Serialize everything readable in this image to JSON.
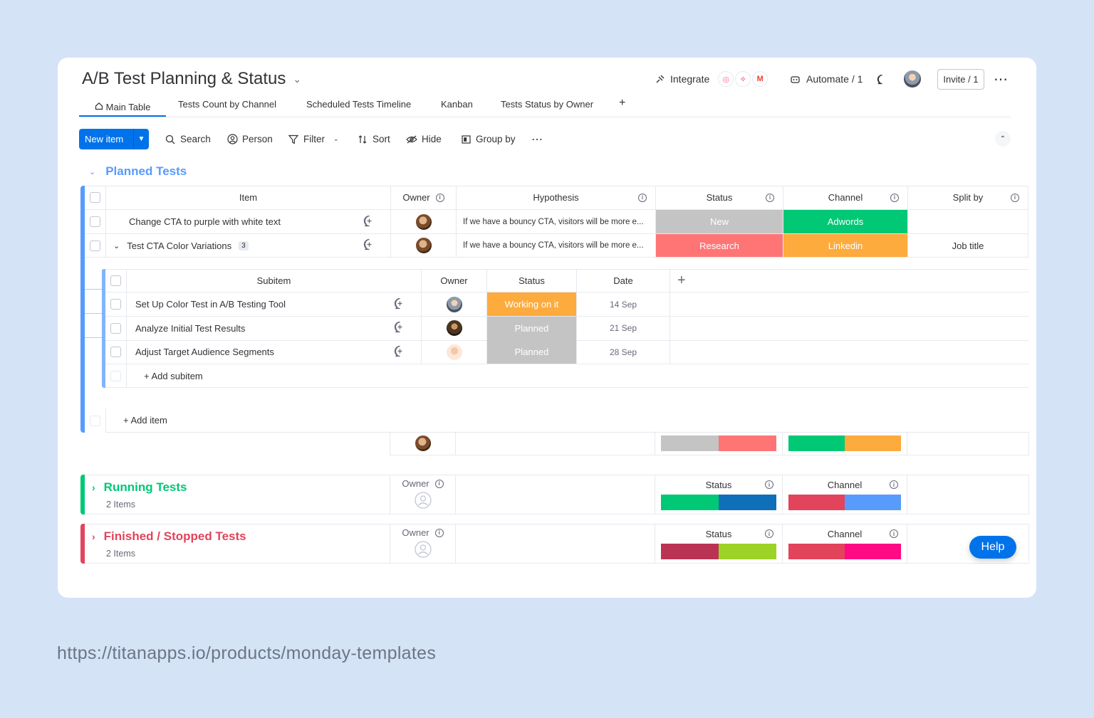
{
  "board": {
    "title": "A/B Test Planning & Status",
    "integrate_label": "Integrate",
    "automate_label": "Automate / 1",
    "invite_label": "Invite / 1"
  },
  "tabs": [
    {
      "label": "Main Table"
    },
    {
      "label": "Tests Count by Channel"
    },
    {
      "label": "Scheduled Tests Timeline"
    },
    {
      "label": "Kanban"
    },
    {
      "label": "Tests Status by Owner"
    }
  ],
  "toolbar": {
    "new_item": "New item",
    "search": "Search",
    "person": "Person",
    "filter": "Filter",
    "sort": "Sort",
    "hide": "Hide",
    "group_by": "Group by"
  },
  "planned": {
    "title": "Planned Tests",
    "color": "#579bfc",
    "columns": {
      "item": "Item",
      "owner": "Owner",
      "hypothesis": "Hypothesis",
      "status": "Status",
      "channel": "Channel",
      "split": "Split by"
    },
    "rows": [
      {
        "item": "Change CTA to purple with white text",
        "hypothesis": "If we have a bouncy CTA, visitors will be more e...",
        "status": "New",
        "status_color": "#c4c4c4",
        "channel": "Adwords",
        "channel_color": "#00c875",
        "split": ""
      },
      {
        "item": "Test CTA Color Variations",
        "count": "3",
        "hypothesis": "If we have a bouncy CTA, visitors will be more e...",
        "status": "Research",
        "status_color": "#ff7575",
        "channel": "Linkedin",
        "channel_color": "#fdab3d",
        "split": "Job title"
      }
    ],
    "subitems": {
      "columns": {
        "subitem": "Subitem",
        "owner": "Owner",
        "status": "Status",
        "date": "Date"
      },
      "rows": [
        {
          "name": "Set Up Color Test in A/B Testing Tool",
          "status": "Working on it",
          "status_color": "#fdab3d",
          "date": "14 Sep"
        },
        {
          "name": "Analyze Initial Test Results",
          "status": "Planned",
          "status_color": "#c4c4c4",
          "date": "21 Sep"
        },
        {
          "name": "Adjust Target Audience Segments",
          "status": "Planned",
          "status_color": "#c4c4c4",
          "date": "28 Sep"
        }
      ],
      "add_label": "+ Add subitem"
    },
    "add_item": "+ Add item"
  },
  "running": {
    "title": "Running Tests",
    "count": "2 Items",
    "color": "#00c875",
    "owner": "Owner",
    "status": "Status",
    "channel": "Channel"
  },
  "finished": {
    "title": "Finished / Stopped Tests",
    "count": "2 Items",
    "color": "#e2445c",
    "owner": "Owner",
    "status": "Status",
    "channel": "Channel"
  },
  "help_label": "Help",
  "footer_url": "https://titanapps.io/products/monday-templates"
}
